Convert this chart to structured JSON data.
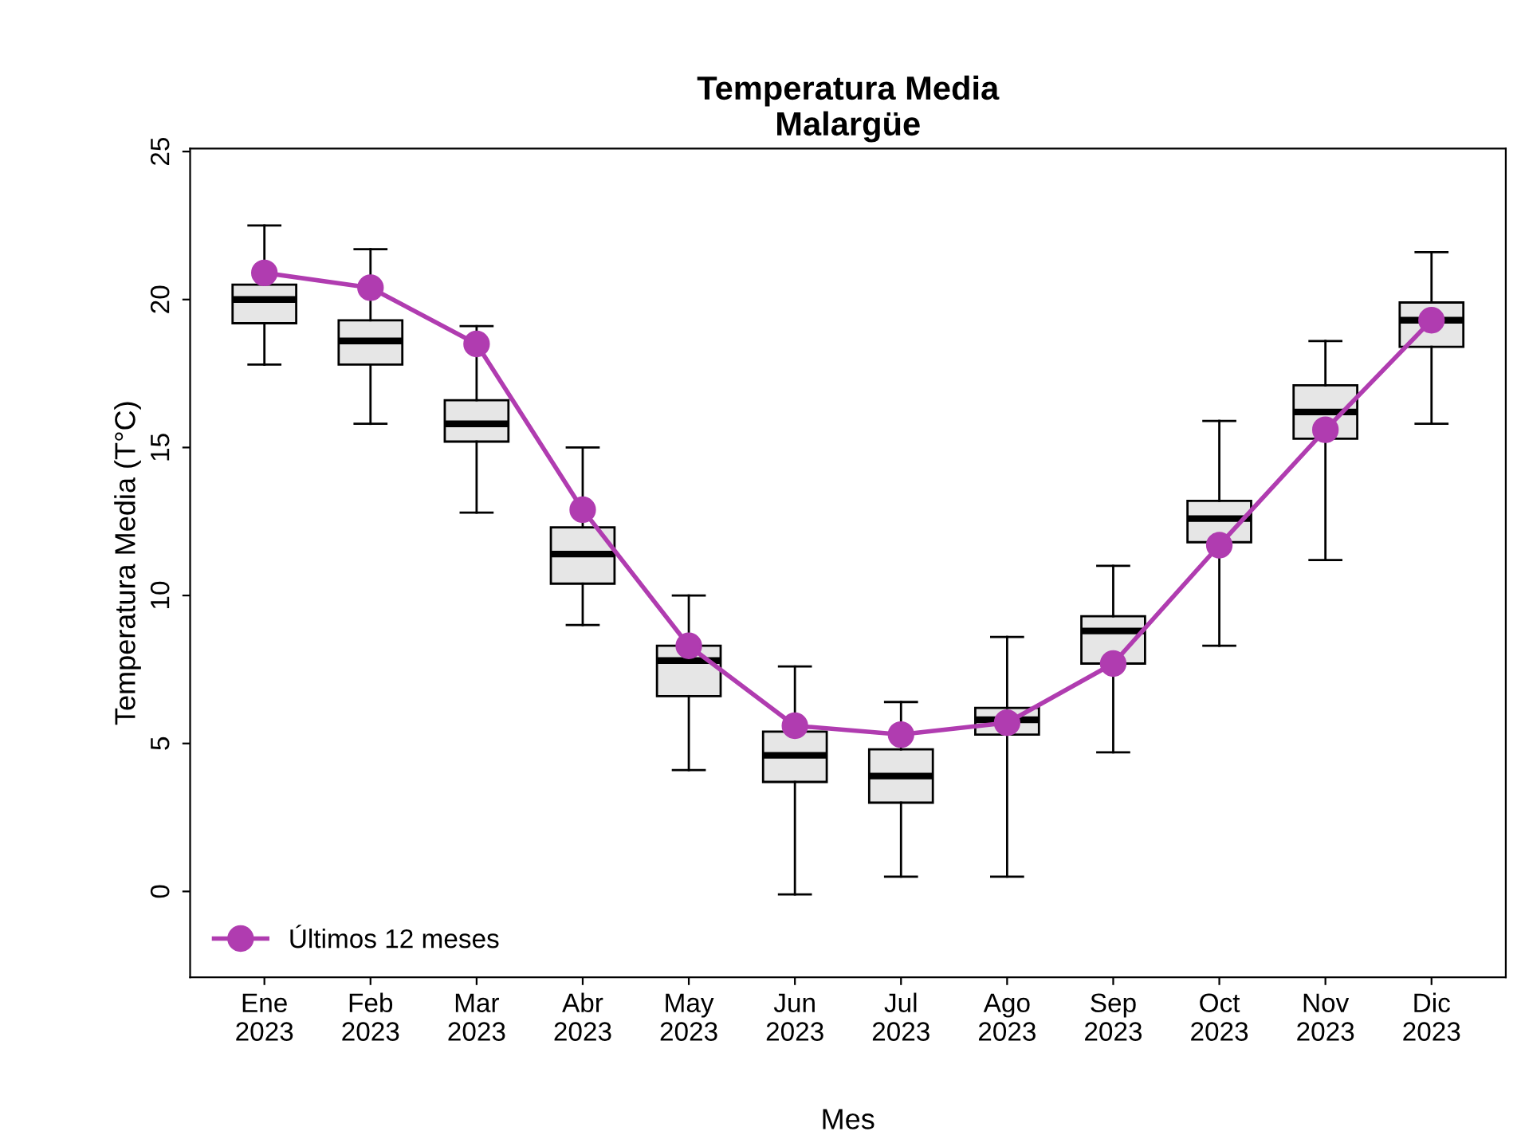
{
  "chart_data": {
    "type": "box",
    "title": "Temperatura Media\nMalargüe",
    "xlabel": "Mes",
    "ylabel": "Temperatura Media (T°C)",
    "categories": [
      "Ene\n2023",
      "Feb\n2023",
      "Mar\n2023",
      "Abr\n2023",
      "May\n2023",
      "Jun\n2023",
      "Jul\n2023",
      "Ago\n2023",
      "Sep\n2023",
      "Oct\n2023",
      "Nov\n2023",
      "Dic\n2023"
    ],
    "boxes": [
      {
        "low": 17.8,
        "q1": 19.2,
        "median": 20.0,
        "q3": 20.5,
        "high": 22.5
      },
      {
        "low": 15.8,
        "q1": 17.8,
        "median": 18.6,
        "q3": 19.3,
        "high": 21.7
      },
      {
        "low": 12.8,
        "q1": 15.2,
        "median": 15.8,
        "q3": 16.6,
        "high": 19.1
      },
      {
        "low": 9.0,
        "q1": 10.4,
        "median": 11.4,
        "q3": 12.3,
        "high": 15.0
      },
      {
        "low": 4.1,
        "q1": 6.6,
        "median": 7.8,
        "q3": 8.3,
        "high": 10.0
      },
      {
        "low": -0.1,
        "q1": 3.7,
        "median": 4.6,
        "q3": 5.4,
        "high": 7.6
      },
      {
        "low": 0.5,
        "q1": 3.0,
        "median": 3.9,
        "q3": 4.8,
        "high": 6.4
      },
      {
        "low": 0.5,
        "q1": 5.3,
        "median": 5.8,
        "q3": 6.2,
        "high": 8.6
      },
      {
        "low": 4.7,
        "q1": 7.7,
        "median": 8.8,
        "q3": 9.3,
        "high": 11.0
      },
      {
        "low": 8.3,
        "q1": 11.8,
        "median": 12.6,
        "q3": 13.2,
        "high": 15.9
      },
      {
        "low": 11.2,
        "q1": 15.3,
        "median": 16.2,
        "q3": 17.1,
        "high": 18.6
      },
      {
        "low": 15.8,
        "q1": 18.4,
        "median": 19.3,
        "q3": 19.9,
        "high": 21.6
      }
    ],
    "color": "#e6e6e6",
    "series": [
      {
        "name": "Últimos 12 meses",
        "type": "line",
        "color": "#b03cb0",
        "marker": "circle",
        "line_style": "solid",
        "values": [
          20.9,
          20.4,
          18.5,
          12.9,
          8.3,
          5.6,
          5.3,
          5.7,
          7.7,
          11.7,
          15.6,
          19.3
        ]
      }
    ],
    "ylim": [
      -2.9,
      25.1
    ],
    "yticks": [
      0,
      5,
      10,
      15,
      20,
      25
    ],
    "grid": false,
    "legend": "bottom left"
  }
}
